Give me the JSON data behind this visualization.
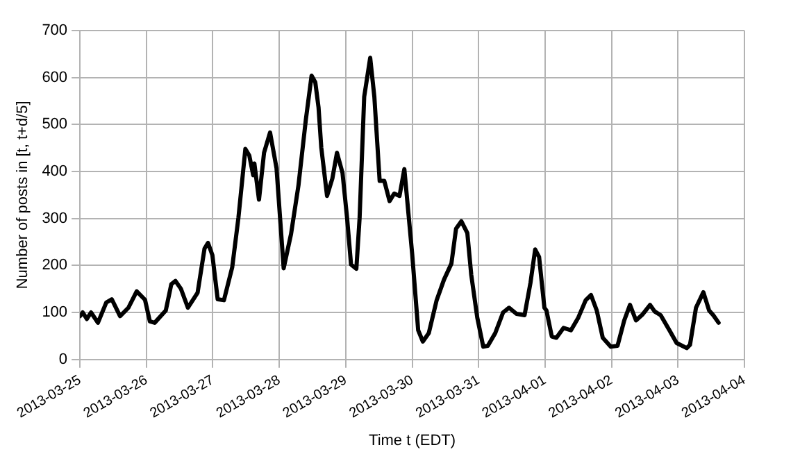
{
  "chart_data": {
    "type": "line",
    "xlabel": "Time t (EDT)",
    "ylabel": "Number of posts in [t, t+d/5]",
    "grid": true,
    "legend": false,
    "marker": "none",
    "line_style": "solid",
    "xlim": [
      "2013-03-25",
      "2013-04-04"
    ],
    "xticks": [
      "2013-03-25",
      "2013-03-26",
      "2013-03-27",
      "2013-03-28",
      "2013-03-29",
      "2013-03-30",
      "2013-03-31",
      "2013-04-01",
      "2013-04-02",
      "2013-04-03",
      "2013-04-04"
    ],
    "ylim": [
      0,
      700
    ],
    "yticks": [
      0,
      100,
      200,
      300,
      400,
      500,
      600,
      700
    ],
    "x": [
      "2013-03-25T00:00",
      "2013-03-25T01:00",
      "2013-03-25T02:30",
      "2013-03-25T04:00",
      "2013-03-25T06:30",
      "2013-03-25T09:30",
      "2013-03-25T11:30",
      "2013-03-25T14:30",
      "2013-03-25T17:30",
      "2013-03-25T20:30",
      "2013-03-25T23:30",
      "2013-03-26T01:15",
      "2013-03-26T03:00",
      "2013-03-26T07:00",
      "2013-03-26T09:00",
      "2013-03-26T10:30",
      "2013-03-26T12:30",
      "2013-03-26T15:00",
      "2013-03-26T18:30",
      "2013-03-26T21:00",
      "2013-03-26T22:15",
      "2013-03-26T23:50",
      "2013-03-27T01:45",
      "2013-03-27T04:00",
      "2013-03-27T07:00",
      "2013-03-27T09:15",
      "2013-03-27T11:45",
      "2013-03-27T13:10",
      "2013-03-27T14:35",
      "2013-03-27T15:00",
      "2013-03-27T16:40",
      "2013-03-27T18:30",
      "2013-03-27T20:40",
      "2013-03-27T23:00",
      "2013-03-28T01:35",
      "2013-03-28T04:15",
      "2013-03-28T06:55",
      "2013-03-28T09:35",
      "2013-03-28T11:40",
      "2013-03-28T13:00",
      "2013-03-28T14:10",
      "2013-03-28T15:10",
      "2013-03-28T17:15",
      "2013-03-28T19:10",
      "2013-03-28T20:50",
      "2013-03-28T22:50",
      "2013-03-29T00:30",
      "2013-03-29T01:55",
      "2013-03-29T03:50",
      "2013-03-29T05:00",
      "2013-03-29T06:40",
      "2013-03-29T08:50",
      "2013-03-29T10:20",
      "2013-03-29T12:15",
      "2013-03-29T13:55",
      "2013-03-29T15:50",
      "2013-03-29T17:30",
      "2013-03-29T19:25",
      "2013-03-29T21:10",
      "2013-03-30T00:00",
      "2013-03-30T02:10",
      "2013-03-30T03:50",
      "2013-03-30T06:00",
      "2013-03-30T08:50",
      "2013-03-30T11:30",
      "2013-03-30T14:10",
      "2013-03-30T15:50",
      "2013-03-30T17:45",
      "2013-03-30T19:55",
      "2013-03-30T21:20",
      "2013-03-30T23:30",
      "2013-03-31T01:40",
      "2013-03-31T03:20",
      "2013-03-31T06:00",
      "2013-03-31T08:50",
      "2013-03-31T11:00",
      "2013-03-31T13:40",
      "2013-03-31T16:35",
      "2013-03-31T18:45",
      "2013-03-31T20:25",
      "2013-03-31T21:50",
      "2013-03-31T23:45",
      "2013-04-01T00:30",
      "2013-04-01T02:25",
      "2013-04-01T04:05",
      "2013-04-01T06:40",
      "2013-04-01T09:20",
      "2013-04-01T12:00",
      "2013-04-01T14:40",
      "2013-04-01T16:35",
      "2013-04-01T18:40",
      "2013-04-01T20:50",
      "2013-04-01T23:45",
      "2013-04-02T02:10",
      "2013-04-02T04:35",
      "2013-04-02T06:40",
      "2013-04-02T08:50",
      "2013-04-02T11:15",
      "2013-04-02T13:55",
      "2013-04-02T15:35",
      "2013-04-02T17:45",
      "2013-04-02T20:55",
      "2013-04-02T23:30",
      "2013-04-03T03:10",
      "2013-04-03T04:20",
      "2013-04-03T06:30",
      "2013-04-03T09:10",
      "2013-04-03T11:15",
      "2013-04-03T12:45",
      "2013-04-03T14:40"
    ],
    "series": [
      {
        "color": "#000000",
        "values": [
          92,
          100,
          86,
          100,
          78,
          121,
          128,
          92,
          110,
          145,
          127,
          81,
          78,
          104,
          160,
          167,
          150,
          110,
          142,
          236,
          248,
          222,
          128,
          126,
          196,
          302,
          448,
          434,
          392,
          417,
          340,
          440,
          483,
          407,
          194,
          267,
          370,
          510,
          604,
          590,
          537,
          451,
          348,
          385,
          440,
          397,
          300,
          202,
          193,
          300,
          559,
          642,
          559,
          380,
          380,
          337,
          353,
          348,
          405,
          224,
          62,
          38,
          56,
          126,
          170,
          204,
          278,
          294,
          269,
          180,
          89,
          27,
          29,
          56,
          100,
          110,
          97,
          94,
          164,
          234,
          218,
          110,
          104,
          49,
          46,
          67,
          62,
          89,
          126,
          137,
          104,
          46,
          27,
          29,
          83,
          116,
          83,
          96,
          116,
          102,
          94,
          62,
          35,
          24,
          31,
          110,
          143,
          104,
          94,
          78
        ]
      }
    ]
  }
}
